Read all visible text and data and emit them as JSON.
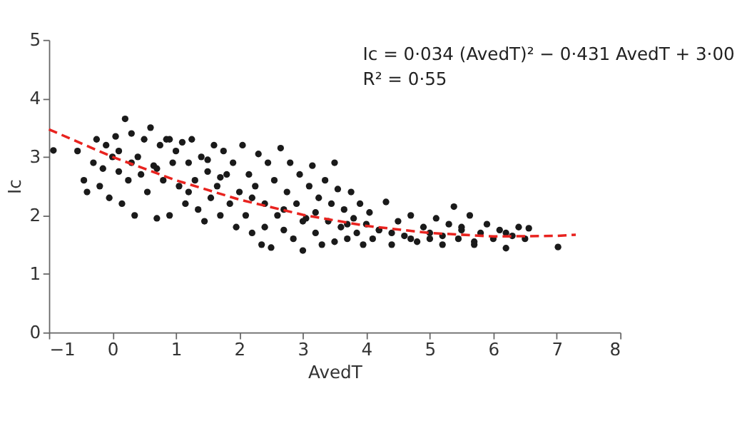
{
  "chart_data": {
    "type": "scatter",
    "xlabel": "AvedT",
    "ylabel": "Ic",
    "xlim": [
      -1,
      8
    ],
    "ylim": [
      0,
      5
    ],
    "xticks": [
      -1,
      0,
      1,
      2,
      3,
      4,
      5,
      6,
      7,
      8
    ],
    "yticks": [
      0,
      1,
      2,
      3,
      4,
      5
    ],
    "grid": false,
    "annotations": [
      "Ic = 0·034 (AvedT)² − 0·431 AvedT + 3·00",
      "R² = 0·55"
    ],
    "series": [
      {
        "color": "#1a1a1a",
        "marker": "circle",
        "x": [
          -0.93,
          -0.55,
          -0.45,
          -0.4,
          -0.3,
          -0.25,
          -0.2,
          -0.15,
          -0.1,
          -0.05,
          0.0,
          0.05,
          0.1,
          0.15,
          0.2,
          0.25,
          0.3,
          0.35,
          0.4,
          0.45,
          0.5,
          0.55,
          0.6,
          0.65,
          0.7,
          0.75,
          0.8,
          0.85,
          0.9,
          0.95,
          1.0,
          1.05,
          1.1,
          1.15,
          1.2,
          1.25,
          1.3,
          1.35,
          1.4,
          1.45,
          1.5,
          1.55,
          1.6,
          1.65,
          1.7,
          1.75,
          1.8,
          1.85,
          1.9,
          1.95,
          2.0,
          2.05,
          2.1,
          2.15,
          2.2,
          2.25,
          2.3,
          2.35,
          2.4,
          2.45,
          2.5,
          2.55,
          2.6,
          2.65,
          2.7,
          2.75,
          2.8,
          2.85,
          2.9,
          2.95,
          3.0,
          3.05,
          3.1,
          3.15,
          3.2,
          3.25,
          3.3,
          3.35,
          3.4,
          3.45,
          3.5,
          3.55,
          3.6,
          3.65,
          3.7,
          3.76,
          3.8,
          3.85,
          3.9,
          3.95,
          4.0,
          4.05,
          4.1,
          4.2,
          4.31,
          4.4,
          4.5,
          4.6,
          4.7,
          4.8,
          4.9,
          5.0,
          5.1,
          5.2,
          5.3,
          5.38,
          5.45,
          5.5,
          5.63,
          5.7,
          5.8,
          5.9,
          6.0,
          6.1,
          6.2,
          6.3,
          6.4,
          6.5,
          6.56,
          7.02,
          0.3,
          0.7,
          1.2,
          1.7,
          2.2,
          2.7,
          3.2,
          3.7,
          4.2,
          4.7,
          5.2,
          5.7,
          6.2,
          0.1,
          0.9,
          1.5,
          2.4,
          3.0,
          3.5,
          4.4,
          5.0,
          5.5
        ],
        "values": [
          3.11,
          3.1,
          2.6,
          2.4,
          2.9,
          3.3,
          2.5,
          2.8,
          3.2,
          2.3,
          3.0,
          3.35,
          3.1,
          2.2,
          3.65,
          2.6,
          3.4,
          2.0,
          3.0,
          2.7,
          3.3,
          2.4,
          3.5,
          2.85,
          1.95,
          3.2,
          2.6,
          3.3,
          2.0,
          2.9,
          3.1,
          2.5,
          3.25,
          2.2,
          2.9,
          3.3,
          2.6,
          2.1,
          3.0,
          1.9,
          2.75,
          2.3,
          3.2,
          2.5,
          2.0,
          3.1,
          2.7,
          2.2,
          2.9,
          1.8,
          2.4,
          3.2,
          2.0,
          2.7,
          1.7,
          2.5,
          3.05,
          1.5,
          2.2,
          2.9,
          1.45,
          2.6,
          2.0,
          3.15,
          1.75,
          2.4,
          2.9,
          1.6,
          2.2,
          2.7,
          1.4,
          1.95,
          2.5,
          2.85,
          1.7,
          2.3,
          1.5,
          2.6,
          1.9,
          2.2,
          1.55,
          2.45,
          1.8,
          2.1,
          1.6,
          2.4,
          1.95,
          1.7,
          2.2,
          1.5,
          1.85,
          2.05,
          1.6,
          1.75,
          2.23,
          1.5,
          1.9,
          1.65,
          2.0,
          1.55,
          1.8,
          1.7,
          1.95,
          1.5,
          1.85,
          2.15,
          1.6,
          1.75,
          2.0,
          1.5,
          1.7,
          1.85,
          1.6,
          1.75,
          1.44,
          1.65,
          1.8,
          1.6,
          1.78,
          1.46,
          2.9,
          2.8,
          2.4,
          2.65,
          2.3,
          2.1,
          2.05,
          1.85,
          1.75,
          1.6,
          1.65,
          1.55,
          1.7,
          2.75,
          3.3,
          2.95,
          1.8,
          1.9,
          2.9,
          1.7,
          1.6,
          1.8
        ]
      },
      {
        "type": "line",
        "color": "#e8231f",
        "line_style": "dashed",
        "x": [
          -1,
          0,
          1,
          2,
          3,
          4,
          5,
          6,
          7,
          7.3
        ],
        "values": [
          3.47,
          3.0,
          2.6,
          2.27,
          2.01,
          1.82,
          1.7,
          1.64,
          1.65,
          1.67
        ]
      }
    ]
  }
}
